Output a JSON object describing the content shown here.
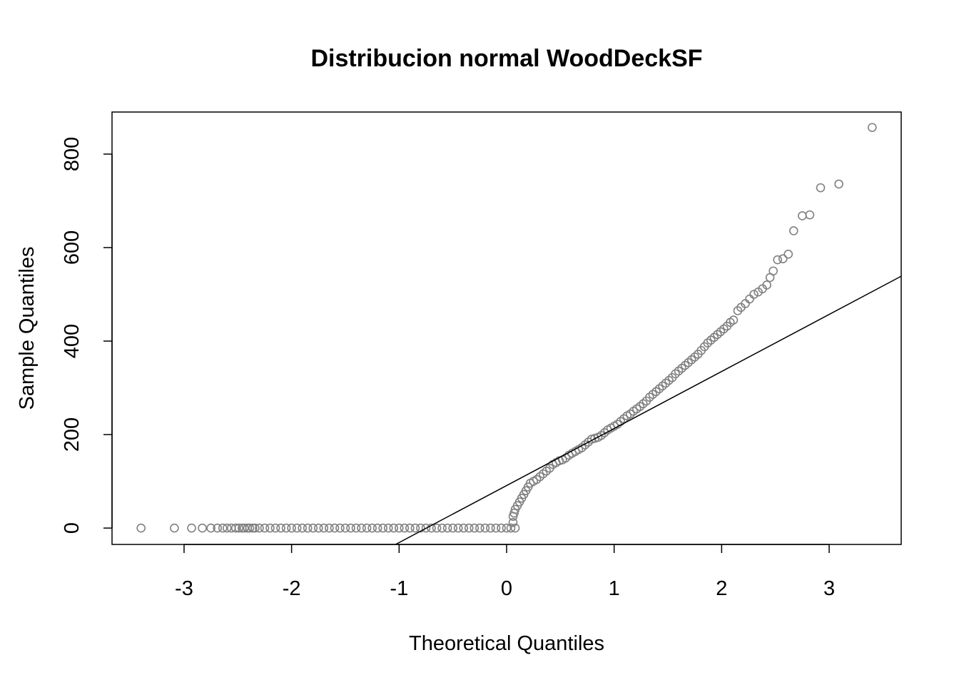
{
  "chart_data": {
    "type": "scatter",
    "title": "Distribucion normal WoodDeckSF",
    "xlabel": "Theoretical Quantiles",
    "ylabel": "Sample Quantiles",
    "xlim": [
      -3.67,
      3.67
    ],
    "ylim": [
      -35,
      890
    ],
    "xticks": [
      -3,
      -2,
      -1,
      0,
      1,
      2,
      3
    ],
    "xtick_labels": [
      "-3",
      "-2",
      "-1",
      "0",
      "1",
      "2",
      "3"
    ],
    "yticks": [
      0,
      200,
      400,
      600,
      800
    ],
    "ytick_labels": [
      "0",
      "200",
      "400",
      "600",
      "800"
    ],
    "grid": false,
    "legend": "none",
    "point_color": "#808080",
    "line_color": "#000000",
    "reference_line": {
      "slope": 122.0,
      "intercept": 91.0
    },
    "points": [
      [
        -3.4,
        0
      ],
      [
        -3.09,
        0
      ],
      [
        -2.93,
        0
      ],
      [
        -2.83,
        0
      ],
      [
        -2.75,
        0
      ],
      [
        -2.69,
        0
      ],
      [
        -2.64,
        0
      ],
      [
        -2.6,
        0
      ],
      [
        -2.56,
        0
      ],
      [
        -2.52,
        0
      ],
      [
        -2.49,
        0
      ],
      [
        -2.46,
        0
      ],
      [
        -2.44,
        0
      ],
      [
        -2.41,
        0
      ],
      [
        -2.39,
        0
      ],
      [
        -2.36,
        0
      ],
      [
        -2.34,
        0
      ],
      [
        -2.3,
        0
      ],
      [
        -2.25,
        0
      ],
      [
        -2.2,
        0
      ],
      [
        -2.15,
        0
      ],
      [
        -2.1,
        0
      ],
      [
        -2.05,
        0
      ],
      [
        -2.0,
        0
      ],
      [
        -1.95,
        0
      ],
      [
        -1.9,
        0
      ],
      [
        -1.85,
        0
      ],
      [
        -1.8,
        0
      ],
      [
        -1.75,
        0
      ],
      [
        -1.7,
        0
      ],
      [
        -1.65,
        0
      ],
      [
        -1.6,
        0
      ],
      [
        -1.55,
        0
      ],
      [
        -1.5,
        0
      ],
      [
        -1.45,
        0
      ],
      [
        -1.4,
        0
      ],
      [
        -1.35,
        0
      ],
      [
        -1.3,
        0
      ],
      [
        -1.25,
        0
      ],
      [
        -1.2,
        0
      ],
      [
        -1.15,
        0
      ],
      [
        -1.1,
        0
      ],
      [
        -1.05,
        0
      ],
      [
        -1.0,
        0
      ],
      [
        -0.95,
        0
      ],
      [
        -0.9,
        0
      ],
      [
        -0.85,
        0
      ],
      [
        -0.8,
        0
      ],
      [
        -0.75,
        0
      ],
      [
        -0.7,
        0
      ],
      [
        -0.65,
        0
      ],
      [
        -0.6,
        0
      ],
      [
        -0.55,
        0
      ],
      [
        -0.5,
        0
      ],
      [
        -0.45,
        0
      ],
      [
        -0.4,
        0
      ],
      [
        -0.35,
        0
      ],
      [
        -0.3,
        0
      ],
      [
        -0.25,
        0
      ],
      [
        -0.2,
        0
      ],
      [
        -0.15,
        0
      ],
      [
        -0.1,
        0
      ],
      [
        -0.05,
        0
      ],
      [
        0.0,
        0
      ],
      [
        0.04,
        0
      ],
      [
        0.08,
        0
      ],
      [
        0.06,
        12
      ],
      [
        0.06,
        25
      ],
      [
        0.07,
        32
      ],
      [
        0.08,
        40
      ],
      [
        0.1,
        48
      ],
      [
        0.12,
        56
      ],
      [
        0.14,
        64
      ],
      [
        0.16,
        72
      ],
      [
        0.18,
        80
      ],
      [
        0.2,
        88
      ],
      [
        0.22,
        96
      ],
      [
        0.25,
        100
      ],
      [
        0.28,
        104
      ],
      [
        0.31,
        110
      ],
      [
        0.34,
        116
      ],
      [
        0.37,
        122
      ],
      [
        0.4,
        128
      ],
      [
        0.43,
        136
      ],
      [
        0.46,
        140
      ],
      [
        0.49,
        144
      ],
      [
        0.52,
        146
      ],
      [
        0.55,
        150
      ],
      [
        0.58,
        156
      ],
      [
        0.61,
        160
      ],
      [
        0.64,
        164
      ],
      [
        0.67,
        168
      ],
      [
        0.7,
        172
      ],
      [
        0.73,
        178
      ],
      [
        0.76,
        184
      ],
      [
        0.79,
        190
      ],
      [
        0.82,
        192
      ],
      [
        0.85,
        194
      ],
      [
        0.88,
        198
      ],
      [
        0.91,
        204
      ],
      [
        0.94,
        210
      ],
      [
        0.97,
        214
      ],
      [
        1.0,
        218
      ],
      [
        1.03,
        222
      ],
      [
        1.06,
        228
      ],
      [
        1.09,
        234
      ],
      [
        1.12,
        240
      ],
      [
        1.15,
        244
      ],
      [
        1.18,
        250
      ],
      [
        1.21,
        255
      ],
      [
        1.24,
        260
      ],
      [
        1.27,
        266
      ],
      [
        1.3,
        272
      ],
      [
        1.33,
        280
      ],
      [
        1.36,
        286
      ],
      [
        1.39,
        292
      ],
      [
        1.42,
        298
      ],
      [
        1.45,
        304
      ],
      [
        1.48,
        310
      ],
      [
        1.51,
        316
      ],
      [
        1.54,
        322
      ],
      [
        1.57,
        330
      ],
      [
        1.6,
        336
      ],
      [
        1.63,
        342
      ],
      [
        1.66,
        348
      ],
      [
        1.69,
        354
      ],
      [
        1.72,
        360
      ],
      [
        1.75,
        366
      ],
      [
        1.78,
        372
      ],
      [
        1.81,
        380
      ],
      [
        1.84,
        388
      ],
      [
        1.87,
        396
      ],
      [
        1.9,
        402
      ],
      [
        1.93,
        408
      ],
      [
        1.96,
        414
      ],
      [
        1.99,
        420
      ],
      [
        2.02,
        426
      ],
      [
        2.05,
        432
      ],
      [
        2.08,
        440
      ],
      [
        2.11,
        445
      ],
      [
        2.15,
        465
      ],
      [
        2.18,
        472
      ],
      [
        2.22,
        480
      ],
      [
        2.26,
        490
      ],
      [
        2.3,
        500
      ],
      [
        2.34,
        505
      ],
      [
        2.38,
        512
      ],
      [
        2.42,
        520
      ],
      [
        2.45,
        536
      ],
      [
        2.48,
        550
      ],
      [
        2.52,
        574
      ],
      [
        2.57,
        576
      ],
      [
        2.62,
        586
      ],
      [
        2.67,
        636
      ],
      [
        2.75,
        668
      ],
      [
        2.82,
        670
      ],
      [
        2.92,
        728
      ],
      [
        3.09,
        736
      ],
      [
        3.4,
        857
      ]
    ]
  }
}
